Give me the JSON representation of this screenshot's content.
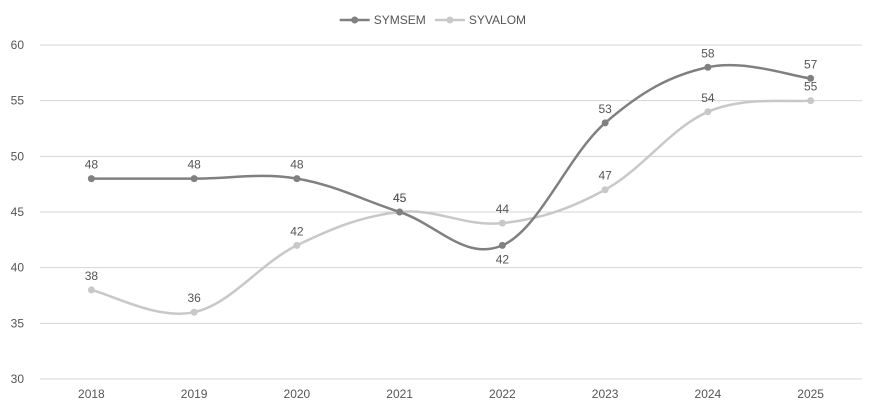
{
  "chart_data": {
    "type": "line",
    "title": "",
    "xlabel": "",
    "ylabel": "",
    "x": [
      "2018",
      "2019",
      "2020",
      "2021",
      "2022",
      "2023",
      "2024",
      "2025"
    ],
    "yticks": [
      "30",
      "35",
      "40",
      "45",
      "50",
      "55",
      "60"
    ],
    "ylim": [
      30,
      60
    ],
    "grid": true,
    "smooth": true,
    "legend_position": "top-center",
    "series": [
      {
        "name": "SYMSEM",
        "values": [
          48,
          48,
          48,
          45,
          42,
          53,
          58,
          57
        ],
        "labels": [
          "48",
          "48",
          "48",
          "45",
          "42",
          "53",
          "58",
          "57"
        ],
        "label_pos": [
          "above",
          "above",
          "above",
          "above",
          "below",
          "above",
          "above",
          "above"
        ],
        "color": "#808080"
      },
      {
        "name": "SYVALOM",
        "values": [
          38,
          36,
          42,
          45,
          44,
          47,
          54,
          55
        ],
        "labels": [
          "38",
          "36",
          "42",
          "45",
          "44",
          "47",
          "54",
          "55"
        ],
        "label_pos": [
          "above",
          "above",
          "above",
          "above",
          "above",
          "above",
          "above",
          "above"
        ],
        "color": "#c8c8c8"
      }
    ]
  }
}
